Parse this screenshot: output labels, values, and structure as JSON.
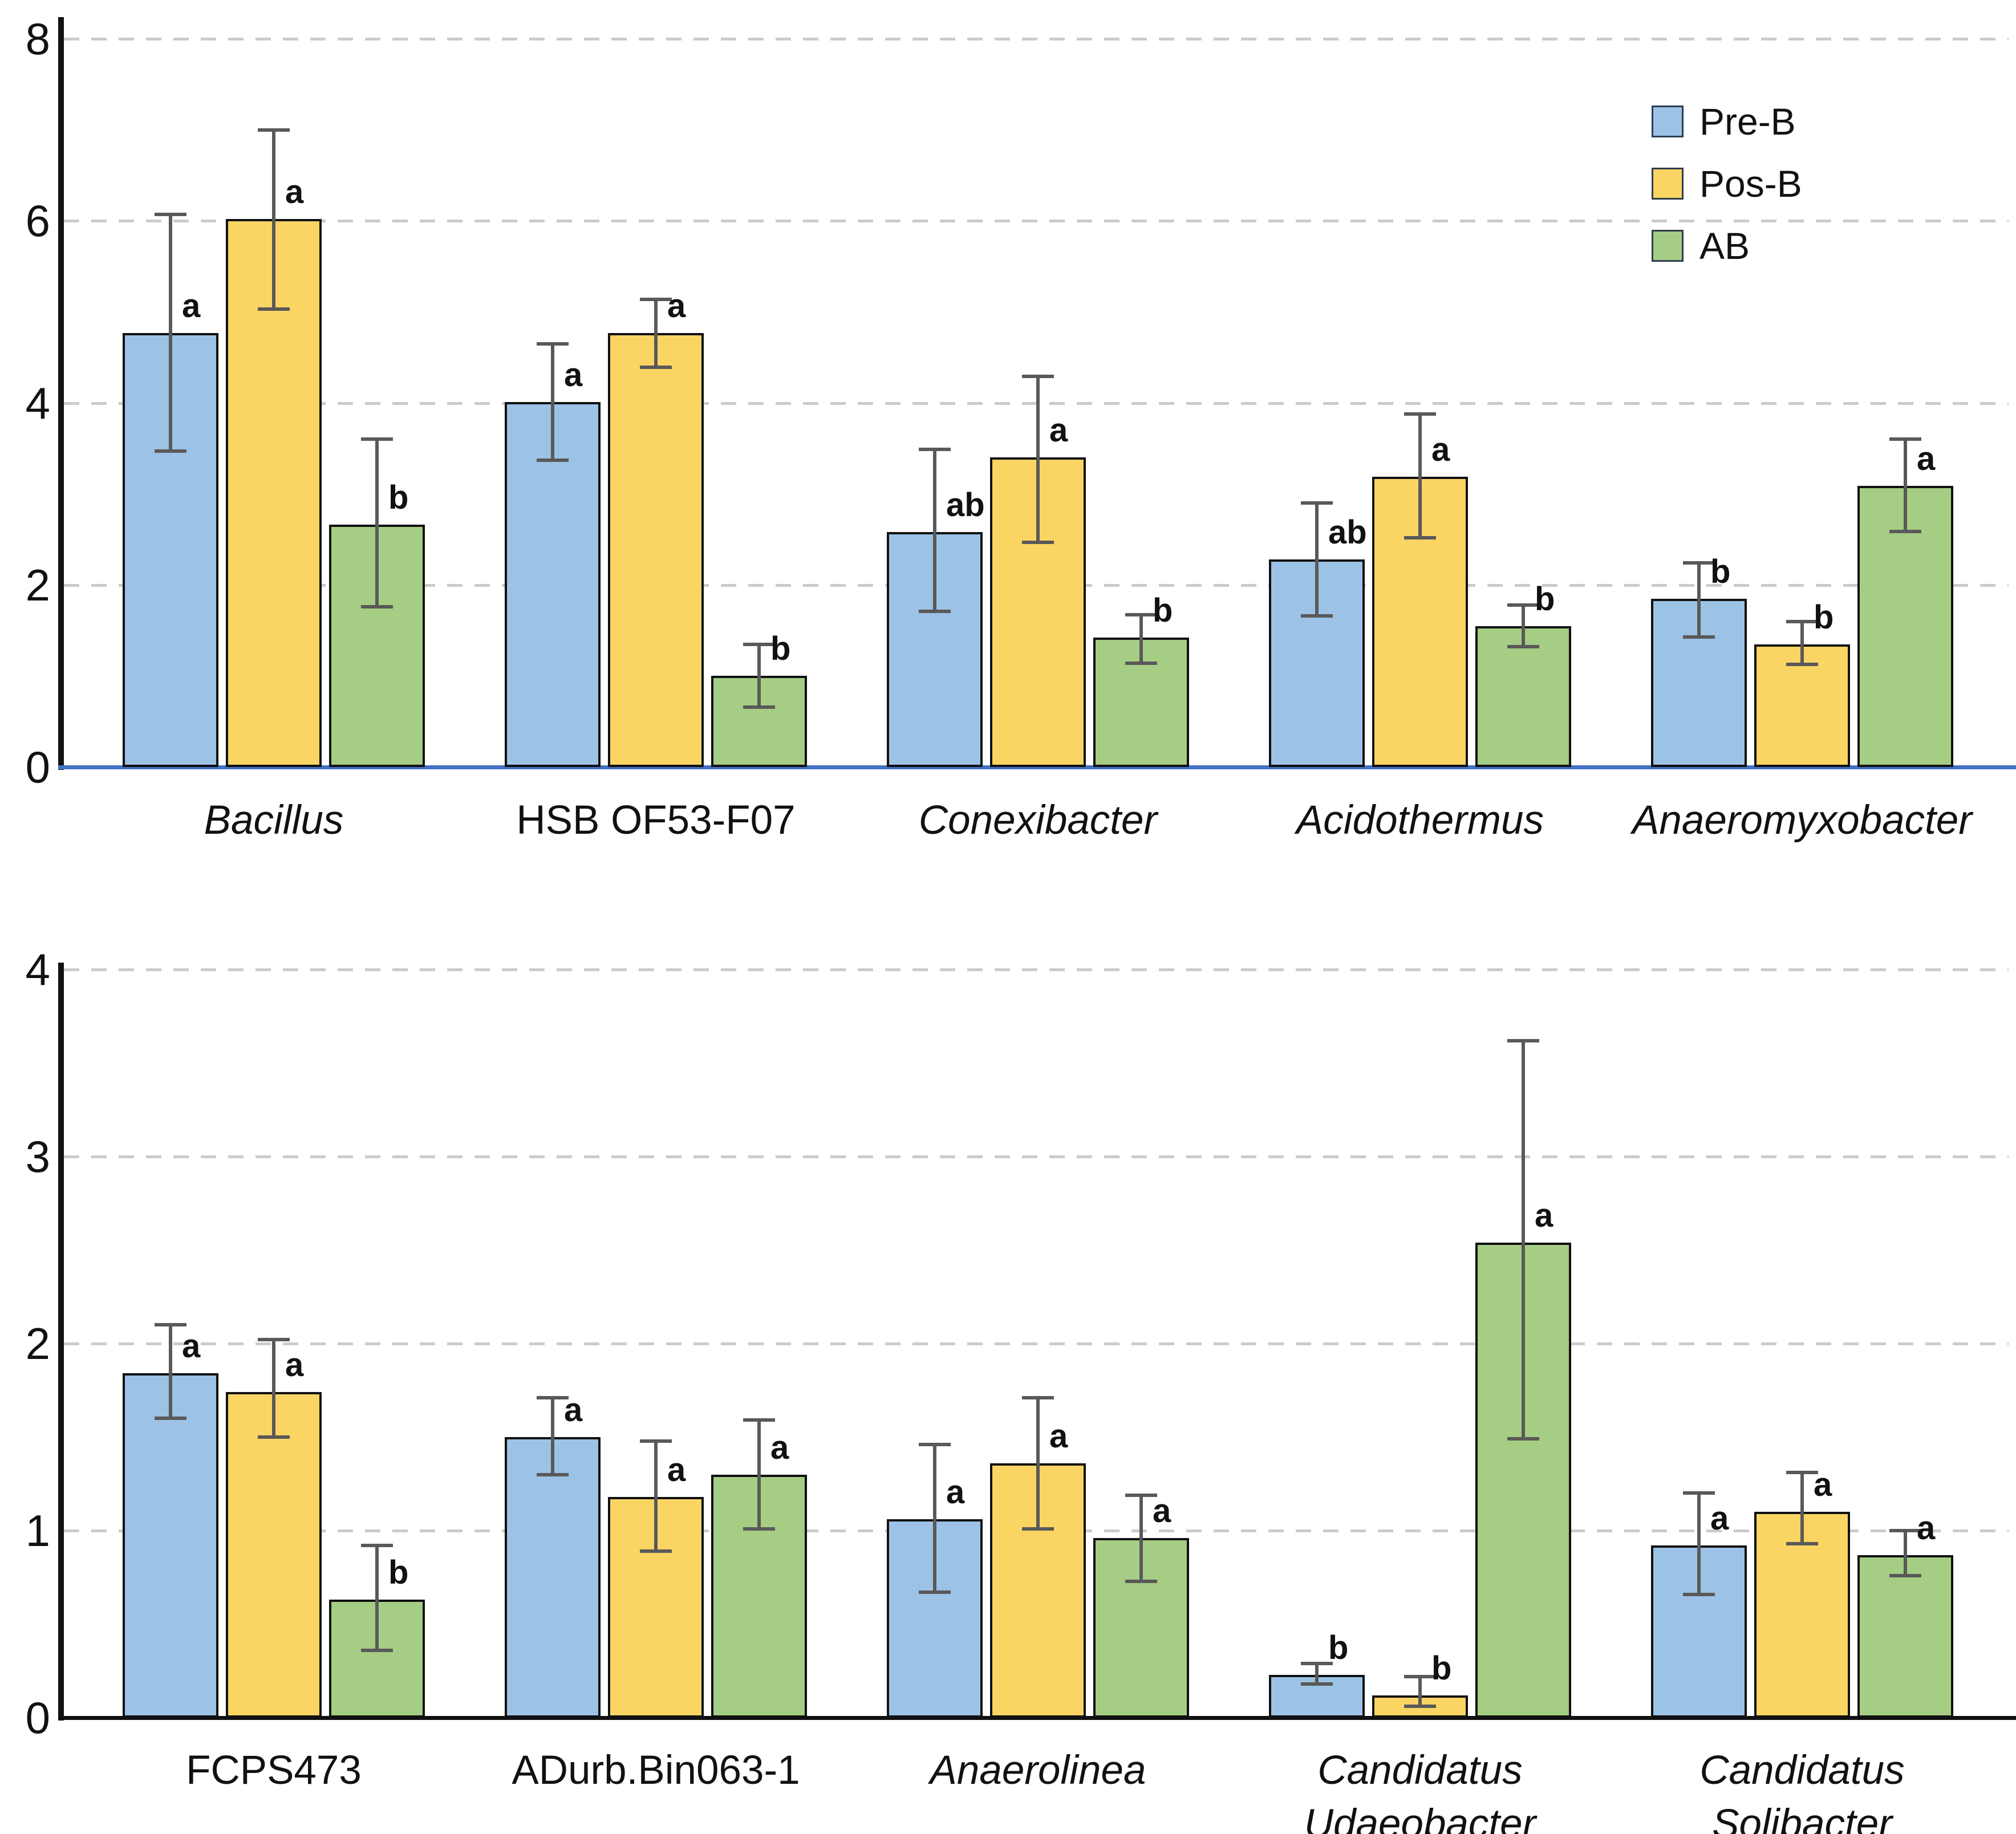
{
  "figure": {
    "kind": "two-panel grouped bar chart with error bars and significance letters",
    "background": "#ffffff"
  },
  "legend": {
    "position": "top-right",
    "items": [
      {
        "label": "Pre-B",
        "color": "#9CC3E6"
      },
      {
        "label": "Pos-B",
        "color": "#FBD564"
      },
      {
        "label": "AB",
        "color": "#A6CD84"
      }
    ]
  },
  "colors": {
    "pre_b": "#9CC3E6",
    "pos_b": "#FBD564",
    "ab": "#A6CD84",
    "bar_border": "#111111",
    "error_bar": "#595959",
    "gridline": "#cbcbcb",
    "top_panel_baseline": "#4472C4",
    "bottom_panel_baseline": "#111111"
  },
  "chart_data": [
    {
      "type": "bar",
      "panel": "top",
      "title": "",
      "xlabel": "",
      "ylabel": "",
      "ylim": [
        0,
        8
      ],
      "yticks": [
        0,
        2,
        4,
        6,
        8
      ],
      "gridlines": [
        2,
        4,
        6,
        8
      ],
      "grid_style": "dashed horizontal",
      "legend_position": "top-right",
      "categories": [
        {
          "lines": [
            "Bacillus"
          ],
          "italic": true
        },
        {
          "lines": [
            "HSB OF53-F07"
          ],
          "italic": false
        },
        {
          "lines": [
            "Conexibacter"
          ],
          "italic": true
        },
        {
          "lines": [
            "Acidothermus"
          ],
          "italic": true
        },
        {
          "lines": [
            "Anaeromyxobacter"
          ],
          "italic": true
        }
      ],
      "series": [
        {
          "name": "Pre-B",
          "color": "#9CC3E6",
          "values": [
            4.77,
            4.01,
            2.58,
            2.28,
            1.85
          ],
          "err_lo": [
            3.47,
            3.37,
            1.71,
            1.66,
            1.43
          ],
          "err_hi": [
            6.07,
            4.65,
            3.49,
            2.9,
            2.24
          ],
          "letters": [
            "a",
            "a",
            "ab",
            "ab",
            "b"
          ]
        },
        {
          "name": "Pos-B",
          "color": "#FBD564",
          "values": [
            6.02,
            4.77,
            3.4,
            3.19,
            1.35
          ],
          "err_lo": [
            5.03,
            4.39,
            2.47,
            2.52,
            1.13
          ],
          "err_hi": [
            7.0,
            5.14,
            4.29,
            3.88,
            1.6
          ],
          "letters": [
            "a",
            "a",
            "a",
            "a",
            "b"
          ]
        },
        {
          "name": "AB",
          "color": "#A6CD84",
          "values": [
            2.66,
            1.0,
            1.42,
            1.55,
            3.09
          ],
          "err_lo": [
            1.76,
            0.66,
            1.14,
            1.32,
            2.59
          ],
          "err_hi": [
            3.6,
            1.35,
            1.67,
            1.78,
            3.6
          ],
          "letters": [
            "b",
            "b",
            "b",
            "b",
            "a"
          ]
        }
      ]
    },
    {
      "type": "bar",
      "panel": "bottom",
      "title": "",
      "xlabel": "",
      "ylabel": "",
      "ylim": [
        0,
        4
      ],
      "yticks": [
        0,
        1,
        2,
        3,
        4
      ],
      "gridlines": [
        1,
        2,
        3,
        4
      ],
      "grid_style": "dashed horizontal",
      "categories": [
        {
          "lines": [
            "FCPS473"
          ],
          "italic": false
        },
        {
          "lines": [
            "ADurb.Bin063-1"
          ],
          "italic": false
        },
        {
          "lines": [
            "Anaerolinea"
          ],
          "italic": true
        },
        {
          "lines": [
            "Candidatus",
            "Udaeobacter"
          ],
          "italic": true
        },
        {
          "lines": [
            "Candidatus",
            "Solibacter"
          ],
          "italic": true
        }
      ],
      "series": [
        {
          "name": "Pre-B",
          "color": "#9CC3E6",
          "values": [
            1.84,
            1.5,
            1.06,
            0.23,
            0.92
          ],
          "err_lo": [
            1.6,
            1.3,
            0.67,
            0.18,
            0.66
          ],
          "err_hi": [
            2.1,
            1.71,
            1.46,
            0.29,
            1.2
          ],
          "letters": [
            "a",
            "a",
            "a",
            "b",
            "a"
          ]
        },
        {
          "name": "Pos-B",
          "color": "#FBD564",
          "values": [
            1.74,
            1.18,
            1.36,
            0.12,
            1.1
          ],
          "err_lo": [
            1.5,
            0.89,
            1.01,
            0.06,
            0.93
          ],
          "err_hi": [
            2.02,
            1.48,
            1.71,
            0.22,
            1.31
          ],
          "letters": [
            "a",
            "a",
            "a",
            "b",
            "a"
          ]
        },
        {
          "name": "AB",
          "color": "#A6CD84",
          "values": [
            0.63,
            1.3,
            0.96,
            2.54,
            0.87
          ],
          "err_lo": [
            0.36,
            1.01,
            0.73,
            1.49,
            0.76
          ],
          "err_hi": [
            0.92,
            1.59,
            1.19,
            3.62,
            1.0
          ],
          "letters": [
            "b",
            "a",
            "a",
            "a",
            "a"
          ]
        }
      ]
    }
  ]
}
